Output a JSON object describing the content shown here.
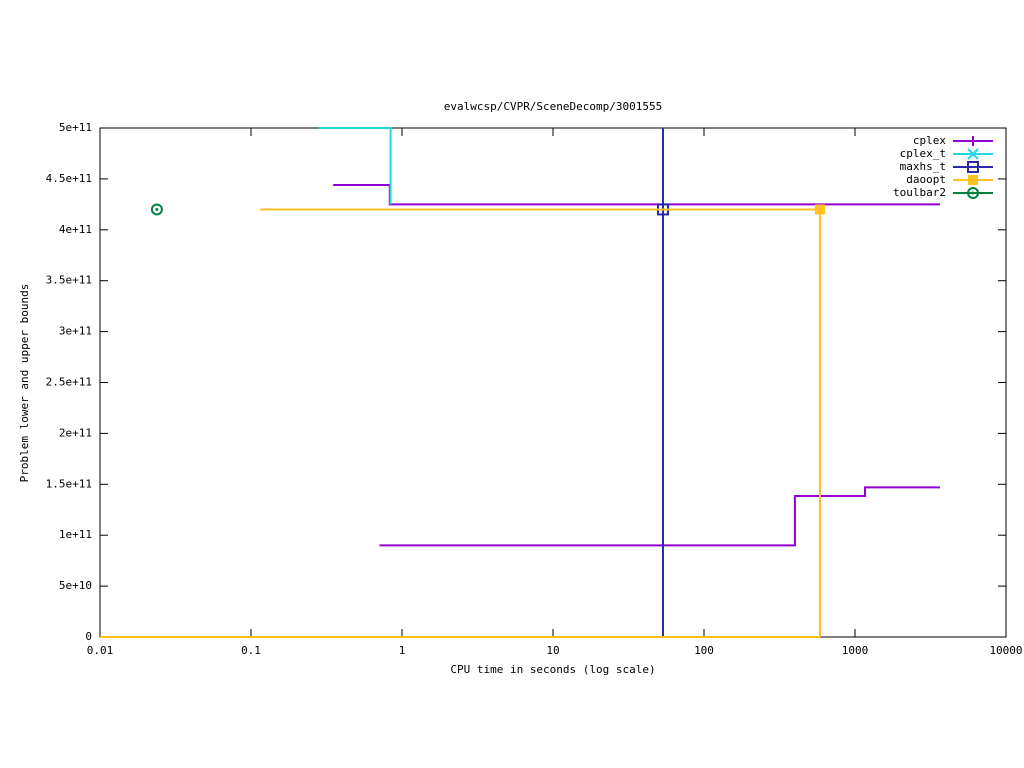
{
  "chart_data": {
    "type": "line",
    "title": "evalwcsp/CVPR/SceneDecomp/3001555",
    "x_label": "CPU time in seconds (log scale)",
    "y_label": "Problem lower and upper bounds",
    "x_log": true,
    "legend": "top-right",
    "xlim": [
      0.01,
      10000
    ],
    "xticks": [
      0.01,
      0.1,
      1,
      10,
      100,
      1000,
      10000
    ],
    "ylim": [
      0,
      500000000000
    ],
    "yticks": [
      {
        "value": 0,
        "label": "0"
      },
      {
        "value": 50000000000,
        "label": "5e+10"
      },
      {
        "value": 100000000000,
        "label": "1e+11"
      },
      {
        "value": 150000000000,
        "label": "1.5e+11"
      },
      {
        "value": 200000000000,
        "label": "2e+11"
      },
      {
        "value": 250000000000,
        "label": "2.5e+11"
      },
      {
        "value": 300000000000,
        "label": "3e+11"
      },
      {
        "value": 350000000000,
        "label": "3.5e+11"
      },
      {
        "value": 400000000000,
        "label": "4e+11"
      },
      {
        "value": 450000000000,
        "label": "4.5e+11"
      },
      {
        "value": 500000000000,
        "label": "5e+11"
      }
    ],
    "series": [
      {
        "name": "cplex",
        "color": "#9400d3",
        "marker": "plus",
        "x": [
          0.35,
          0.83,
          0.83,
          3650,
          null,
          0.71,
          400,
          400,
          1165,
          1165,
          3650
        ],
        "values": [
          444000000000,
          444000000000,
          425000000000,
          425000000000,
          null,
          90000000000,
          90000000000,
          138500000000,
          138500000000,
          147000000000,
          147000000000
        ],
        "points_x": [],
        "points_values": []
      },
      {
        "name": "cplex_t",
        "color": "#22d8e0",
        "marker": "cross",
        "x": [
          0.28,
          0.84,
          0.84
        ],
        "values": [
          500000000000,
          500000000000,
          425000000000
        ],
        "points_x": [],
        "points_values": []
      },
      {
        "name": "maxhs_t",
        "color": "#2a2aa8",
        "marker": "square",
        "x": [
          53.5,
          53.5
        ],
        "values": [
          0,
          500000000000
        ],
        "points_x": [
          53.5
        ],
        "points_values": [
          420000000000
        ]
      },
      {
        "name": "daoopt",
        "color": "#ffc020",
        "marker": "filled-square",
        "x": [
          0.115,
          586,
          586,
          null,
          0.01,
          586
        ],
        "values": [
          420000000000,
          420000000000,
          0,
          null,
          0,
          0
        ],
        "points_x": [
          586
        ],
        "points_values": [
          420000000000
        ]
      },
      {
        "name": "toulbar2",
        "color": "#008040",
        "marker": "circle",
        "x": [],
        "values": [],
        "points_x": [
          0.0238
        ],
        "points_values": [
          420000000000
        ]
      }
    ]
  }
}
